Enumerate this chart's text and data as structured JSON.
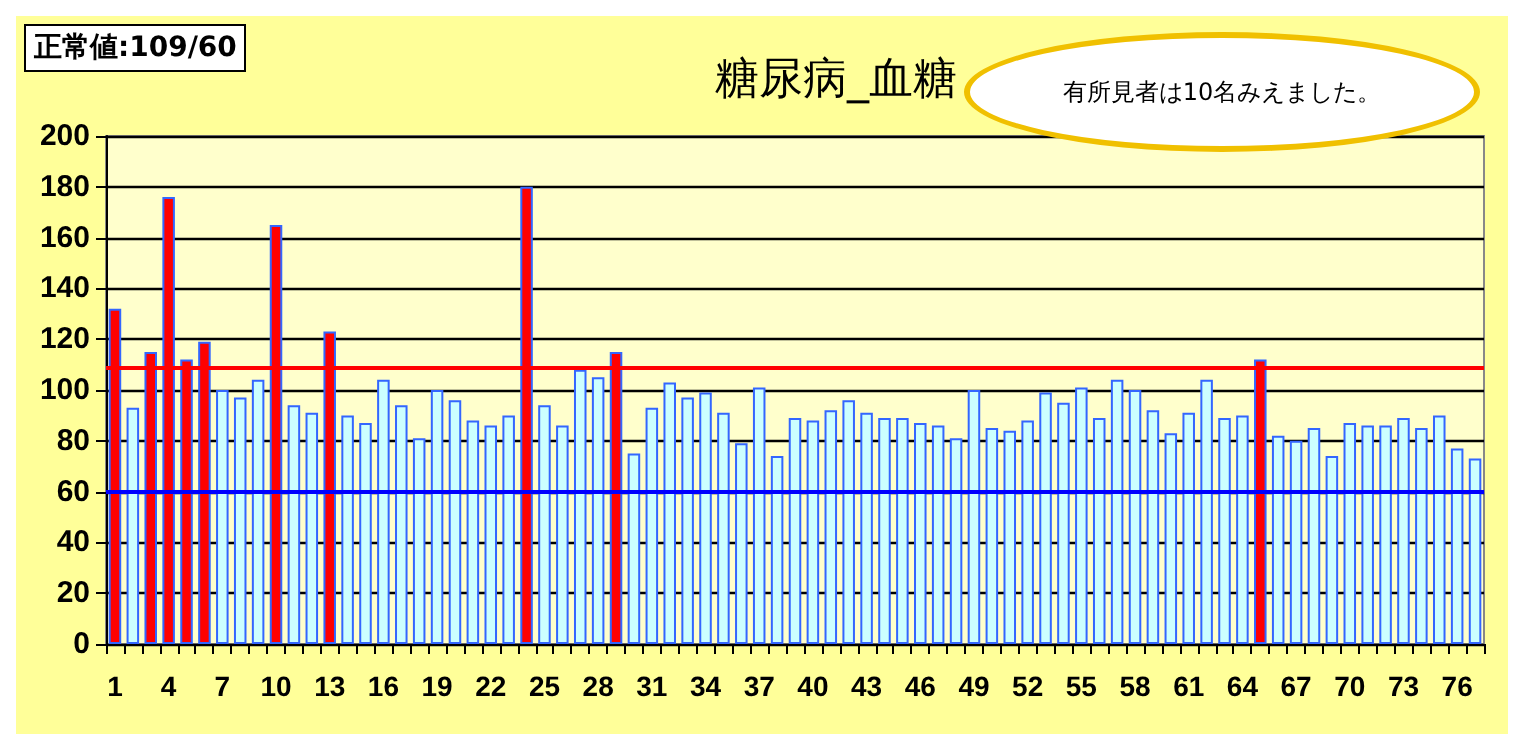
{
  "chart_data": {
    "type": "bar",
    "title": "糖尿病_血糖",
    "categories": [
      "1",
      null,
      null,
      "4",
      null,
      null,
      "7",
      null,
      null,
      "10",
      null,
      null,
      "13",
      null,
      null,
      "16",
      null,
      null,
      "19",
      null,
      null,
      "22",
      null,
      null,
      "25",
      null,
      null,
      "28",
      null,
      null,
      "31",
      null,
      null,
      "34",
      null,
      null,
      "37",
      null,
      null,
      "40",
      null,
      null,
      "43",
      null,
      null,
      "46",
      null,
      null,
      "49",
      null,
      null,
      "52",
      null,
      null,
      "55",
      null,
      null,
      "58",
      null,
      null,
      "61",
      null,
      null,
      "64",
      null,
      null,
      "67",
      null,
      null,
      "70",
      null,
      null,
      "73",
      null,
      null,
      "76",
      null
    ],
    "values": [
      132,
      93,
      115,
      176,
      112,
      119,
      100,
      97,
      104,
      165,
      94,
      91,
      123,
      90,
      87,
      104,
      94,
      81,
      100,
      96,
      88,
      86,
      90,
      180,
      94,
      86,
      108,
      105,
      115,
      75,
      93,
      103,
      97,
      99,
      91,
      79,
      101,
      74,
      89,
      88,
      92,
      96,
      91,
      89,
      89,
      87,
      86,
      81,
      100,
      85,
      84,
      88,
      99,
      95,
      101,
      89,
      104,
      100,
      92,
      83,
      91,
      104,
      89,
      90,
      112,
      82,
      80,
      85,
      74,
      87,
      86,
      86,
      89,
      85,
      90,
      77,
      73
    ],
    "colors": [
      "#ff0000",
      "#ccffff",
      "#ff0000",
      "#ff0000",
      "#ff0000",
      "#ff0000",
      "#ccffff",
      "#ccffff",
      "#ccffff",
      "#ff0000",
      "#ccffff",
      "#ccffff",
      "#ff0000",
      "#ccffff",
      "#ccffff",
      "#ccffff",
      "#ccffff",
      "#ccffff",
      "#ccffff",
      "#ccffff",
      "#ccffff",
      "#ccffff",
      "#ccffff",
      "#ff0000",
      "#ccffff",
      "#ccffff",
      "#ccffff",
      "#ccffff",
      "#ff0000",
      "#ccffff",
      "#ccffff",
      "#ccffff",
      "#ccffff",
      "#ccffff",
      "#ccffff",
      "#ccffff",
      "#ccffff",
      "#ccffff",
      "#ccffff",
      "#ccffff",
      "#ccffff",
      "#ccffff",
      "#ccffff",
      "#ccffff",
      "#ccffff",
      "#ccffff",
      "#ccffff",
      "#ccffff",
      "#ccffff",
      "#ccffff",
      "#ccffff",
      "#ccffff",
      "#ccffff",
      "#ccffff",
      "#ccffff",
      "#ccffff",
      "#ccffff",
      "#ccffff",
      "#ccffff",
      "#ccffff",
      "#ccffff",
      "#ccffff",
      "#ccffff",
      "#ccffff",
      "#ff0000",
      "#ccffff",
      "#ccffff",
      "#ccffff",
      "#ccffff",
      "#ccffff",
      "#ccffff",
      "#ccffff",
      "#ccffff",
      "#ccffff",
      "#ccffff",
      "#ccffff",
      "#ccffff"
    ],
    "ylim": [
      0,
      200
    ],
    "yticks": [
      0,
      20,
      40,
      60,
      80,
      100,
      120,
      140,
      160,
      180,
      200
    ],
    "grid": "y",
    "ref_lines": [
      {
        "axis": "y",
        "value": 109,
        "color": "#ff0000"
      },
      {
        "axis": "y",
        "value": 60,
        "color": "#0000ff"
      }
    ],
    "annotations": [
      "正常値:109/60",
      "有所見者は10名みえました。"
    ]
  }
}
